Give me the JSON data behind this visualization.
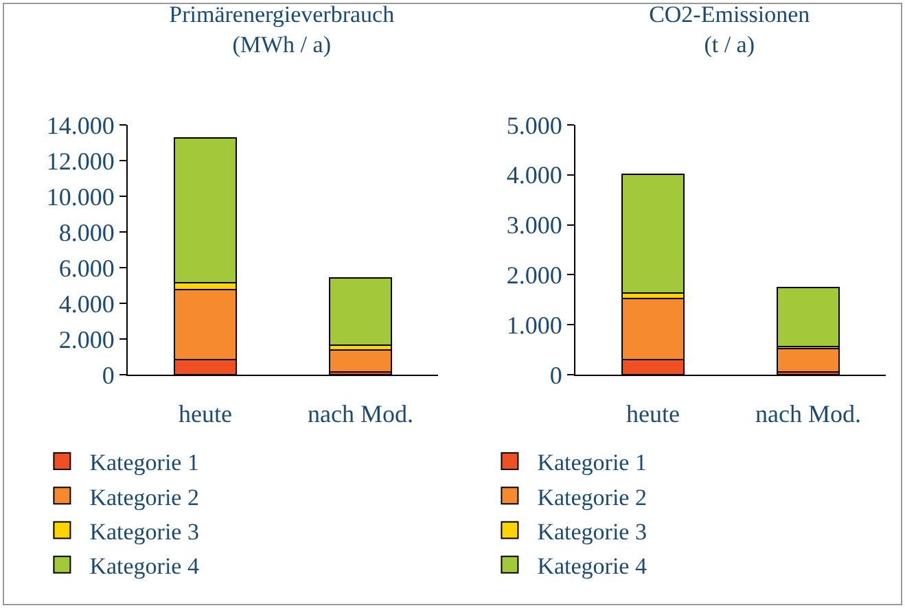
{
  "chart_data": [
    {
      "type": "bar",
      "title": "Primärenergieverbrauch\n(MWh / a)",
      "stacked": true,
      "categories": [
        "heute",
        "nach Mod."
      ],
      "ylim": [
        0,
        14000
      ],
      "yticks": [
        {
          "value": 0,
          "label": "0"
        },
        {
          "value": 2000,
          "label": "2.000"
        },
        {
          "value": 4000,
          "label": "4.000"
        },
        {
          "value": 6000,
          "label": "6.000"
        },
        {
          "value": 8000,
          "label": "8.000"
        },
        {
          "value": 10000,
          "label": "10.000"
        },
        {
          "value": 12000,
          "label": "12.000"
        },
        {
          "value": 14000,
          "label": "14.000"
        }
      ],
      "grid": false,
      "legend": "bottom",
      "series": [
        {
          "name": "Kategorie 1",
          "color": "#f04e23",
          "values": [
            850,
            170
          ]
        },
        {
          "name": "Kategorie 2",
          "color": "#f58b2e",
          "values": [
            3930,
            1230
          ]
        },
        {
          "name": "Kategorie 3",
          "color": "#ffd400",
          "values": [
            360,
            260
          ]
        },
        {
          "name": "Kategorie 4",
          "color": "#a3c93a",
          "values": [
            8130,
            3770
          ]
        }
      ]
    },
    {
      "type": "bar",
      "title": "CO2-Emissionen\n(t / a)",
      "stacked": true,
      "categories": [
        "heute",
        "nach Mod."
      ],
      "ylim": [
        0,
        5000
      ],
      "yticks": [
        {
          "value": 0,
          "label": "0"
        },
        {
          "value": 1000,
          "label": "1.000"
        },
        {
          "value": 2000,
          "label": "2.000"
        },
        {
          "value": 3000,
          "label": "3.000"
        },
        {
          "value": 4000,
          "label": "4.000"
        },
        {
          "value": 5000,
          "label": "5.000"
        }
      ],
      "grid": false,
      "legend": "bottom",
      "series": [
        {
          "name": "Kategorie 1",
          "color": "#f04e23",
          "values": [
            300,
            50
          ]
        },
        {
          "name": "Kategorie 2",
          "color": "#f58b2e",
          "values": [
            1230,
            470
          ]
        },
        {
          "name": "Kategorie 3",
          "color": "#ffd400",
          "values": [
            100,
            50
          ]
        },
        {
          "name": "Kategorie 4",
          "color": "#a3c93a",
          "values": [
            2380,
            1180
          ]
        }
      ]
    }
  ]
}
